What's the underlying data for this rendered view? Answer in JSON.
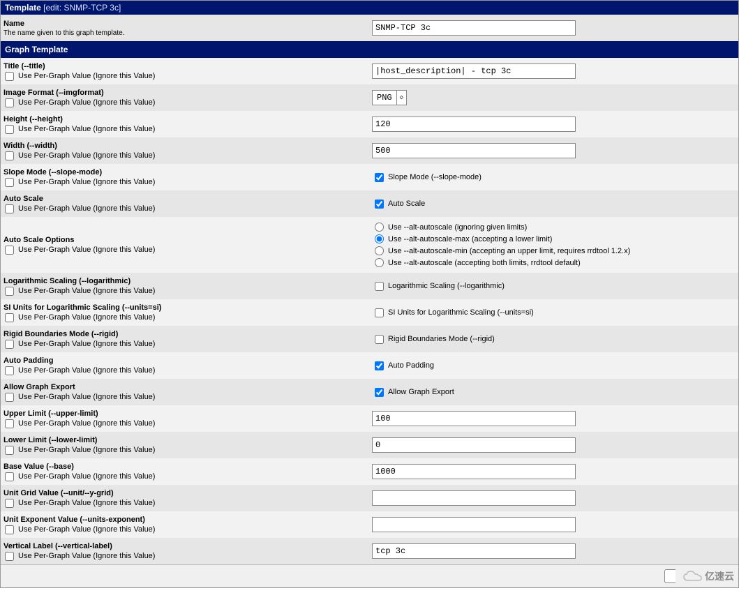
{
  "header": {
    "title": "Template",
    "suffix": "[edit: SNMP-TCP 3c]"
  },
  "pergraph_label": "Use Per-Graph Value (Ignore this Value)",
  "name_row": {
    "label": "Name",
    "desc": "The name given to this graph template.",
    "value": "SNMP-TCP 3c"
  },
  "section2": "Graph Template",
  "rows": {
    "title": {
      "label": "Title (--title)",
      "type": "text",
      "value": "|host_description| - tcp 3c"
    },
    "imgfmt": {
      "label": "Image Format (--imgformat)",
      "type": "select",
      "value": "PNG"
    },
    "height": {
      "label": "Height (--height)",
      "type": "text",
      "value": "120"
    },
    "width": {
      "label": "Width (--width)",
      "type": "text",
      "value": "500"
    },
    "slope": {
      "label": "Slope Mode (--slope-mode)",
      "type": "check",
      "checked": true,
      "rlabel": "Slope Mode (--slope-mode)"
    },
    "autoscale": {
      "label": "Auto Scale",
      "type": "check",
      "checked": true,
      "rlabel": "Auto Scale"
    },
    "asopt": {
      "label": "Auto Scale Options",
      "type": "radio",
      "options": [
        {
          "label": "Use --alt-autoscale (ignoring given limits)",
          "sel": false
        },
        {
          "label": "Use --alt-autoscale-max (accepting a lower limit)",
          "sel": true
        },
        {
          "label": "Use --alt-autoscale-min (accepting an upper limit, requires rrdtool 1.2.x)",
          "sel": false
        },
        {
          "label": "Use --alt-autoscale (accepting both limits, rrdtool default)",
          "sel": false
        }
      ]
    },
    "log": {
      "label": "Logarithmic Scaling (--logarithmic)",
      "type": "check",
      "checked": false,
      "rlabel": "Logarithmic Scaling (--logarithmic)"
    },
    "siunits": {
      "label": "SI Units for Logarithmic Scaling (--units=si)",
      "type": "check",
      "checked": false,
      "rlabel": "SI Units for Logarithmic Scaling (--units=si)"
    },
    "rigid": {
      "label": "Rigid Boundaries Mode (--rigid)",
      "type": "check",
      "checked": false,
      "rlabel": "Rigid Boundaries Mode (--rigid)"
    },
    "autopad": {
      "label": "Auto Padding",
      "type": "check",
      "checked": true,
      "rlabel": "Auto Padding"
    },
    "export": {
      "label": "Allow Graph Export",
      "type": "check",
      "checked": true,
      "rlabel": "Allow Graph Export"
    },
    "upper": {
      "label": "Upper Limit (--upper-limit)",
      "type": "text",
      "value": "100"
    },
    "lower": {
      "label": "Lower Limit (--lower-limit)",
      "type": "text",
      "value": "0"
    },
    "base": {
      "label": "Base Value (--base)",
      "type": "text",
      "value": "1000"
    },
    "unitgrid": {
      "label": "Unit Grid Value (--unit/--y-grid)",
      "type": "text",
      "value": ""
    },
    "unitexp": {
      "label": "Unit Exponent Value (--units-exponent)",
      "type": "text",
      "value": ""
    },
    "vlabel": {
      "label": "Vertical Label (--vertical-label)",
      "type": "text",
      "value": "tcp 3c"
    }
  },
  "watermark": "亿速云"
}
